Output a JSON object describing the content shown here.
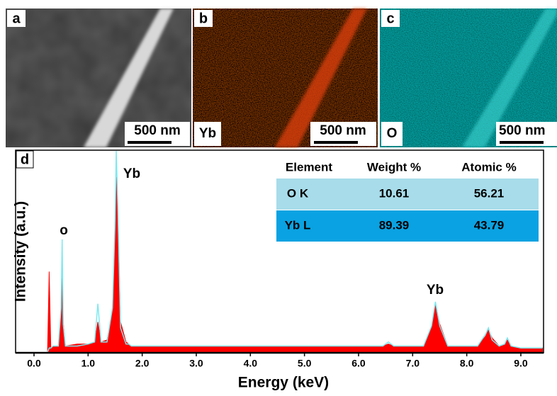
{
  "panels": [
    {
      "label": "a",
      "scale_bar": "500 nm"
    },
    {
      "label": "b",
      "element": "Yb",
      "scale_bar": "500 nm"
    },
    {
      "label": "c",
      "element": "O",
      "scale_bar": "500 nm"
    }
  ],
  "chart_data": {
    "type": "area",
    "panel_label": "d",
    "x_label": "Energy (keV)",
    "y_label": "Intensity (a.u.)",
    "xlim": [
      0,
      9.4
    ],
    "ylim": [
      0,
      100
    ],
    "xticks": [
      {
        "value": 0,
        "label": "0.0"
      },
      {
        "value": 1,
        "label": "1.0"
      },
      {
        "value": 2,
        "label": "2.0"
      },
      {
        "value": 3,
        "label": "3.0"
      },
      {
        "value": 4,
        "label": "4.0"
      },
      {
        "value": 5,
        "label": "5.0"
      },
      {
        "value": 6,
        "label": "6.0"
      },
      {
        "value": 7,
        "label": "7.0"
      },
      {
        "value": 8,
        "label": "8.0"
      },
      {
        "value": 9,
        "label": "9.0"
      }
    ],
    "x": [
      0.25,
      0.28,
      0.31,
      0.35,
      0.45,
      0.5,
      0.52,
      0.54,
      0.58,
      0.8,
      1.0,
      1.12,
      1.18,
      1.24,
      1.35,
      1.45,
      1.5,
      1.52,
      1.55,
      1.6,
      1.7,
      1.75,
      1.8,
      2.0,
      3.0,
      4.0,
      5.0,
      6.0,
      6.45,
      6.55,
      6.65,
      7.2,
      7.35,
      7.42,
      7.5,
      7.65,
      8.2,
      8.35,
      8.4,
      8.47,
      8.6,
      8.7,
      8.75,
      8.82,
      9.0,
      9.4
    ],
    "series": [
      {
        "color": "#ff0000",
        "values": [
          0,
          40,
          2,
          3,
          3,
          20,
          44,
          15,
          3,
          4,
          4,
          5,
          15,
          5,
          6,
          20,
          60,
          87,
          70,
          15,
          5,
          4,
          3,
          3,
          3,
          3,
          3,
          3,
          3,
          4,
          3,
          3,
          12,
          24,
          14,
          3,
          3,
          8,
          11,
          7,
          3,
          4,
          6,
          3,
          2,
          2
        ]
      },
      {
        "color": "#7fe8f0",
        "values": [
          0,
          2,
          2,
          3,
          3,
          22,
          56,
          14,
          3,
          3,
          4,
          5,
          24,
          5,
          5,
          22,
          66,
          100,
          72,
          12,
          4,
          4,
          3,
          3,
          3,
          3,
          3,
          3,
          3,
          5,
          3,
          3,
          13,
          25,
          13,
          3,
          3,
          9,
          12,
          6,
          3,
          4,
          7,
          3,
          2,
          2
        ]
      }
    ],
    "annotations": [
      "o",
      "Yb",
      "Yb"
    ],
    "table": {
      "columns": [
        "Element",
        "Weight %",
        "Atomic %"
      ],
      "rows": [
        [
          "O K",
          10.61,
          56.21
        ],
        [
          "Yb L",
          89.39,
          43.79
        ]
      ]
    }
  }
}
